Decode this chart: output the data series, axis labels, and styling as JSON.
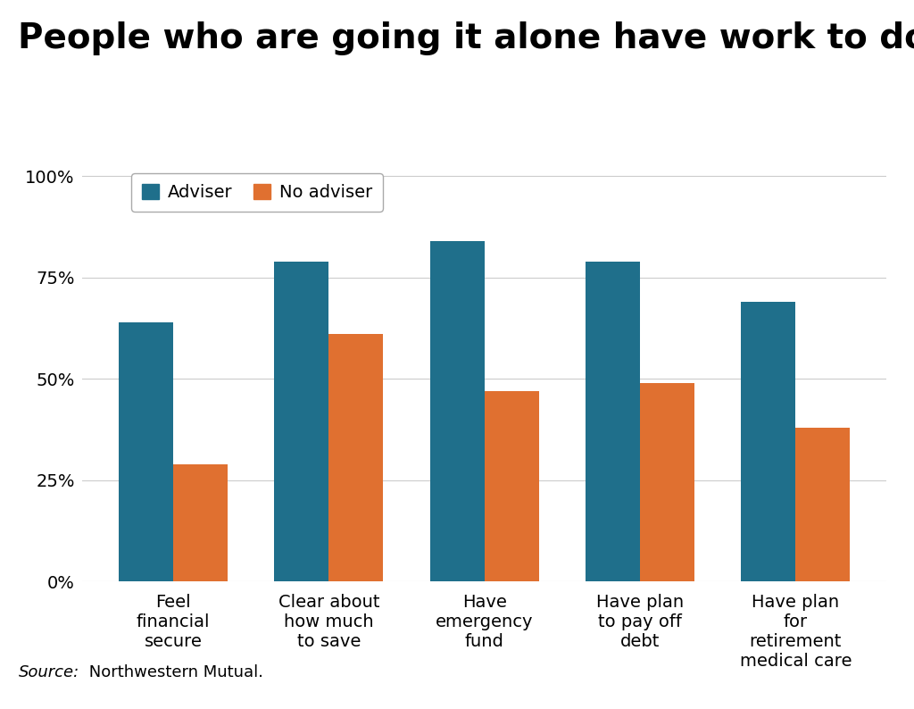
{
  "title": "People who are going it alone have work to do",
  "categories": [
    "Feel\nfinancial\nsecure",
    "Clear about\nhow much\nto save",
    "Have\nemergency\nfund",
    "Have plan\nto pay off\ndebt",
    "Have plan\nfor\nretirement\nmedical care"
  ],
  "adviser_values": [
    0.64,
    0.79,
    0.84,
    0.79,
    0.69
  ],
  "no_adviser_values": [
    0.29,
    0.61,
    0.47,
    0.49,
    0.38
  ],
  "adviser_color": "#1f6f8b",
  "no_adviser_color": "#e07030",
  "background_color": "#ffffff",
  "plot_bg_color": "#ffffff",
  "grid_color": "#cccccc",
  "title_fontsize": 28,
  "legend_fontsize": 14,
  "tick_fontsize": 14,
  "source_text_italic": "Source:",
  "source_text_normal": " Northwestern Mutual.",
  "source_fontsize": 13,
  "bar_width": 0.35,
  "ylim": [
    0,
    1.05
  ],
  "yticks": [
    0.0,
    0.25,
    0.5,
    0.75,
    1.0
  ]
}
